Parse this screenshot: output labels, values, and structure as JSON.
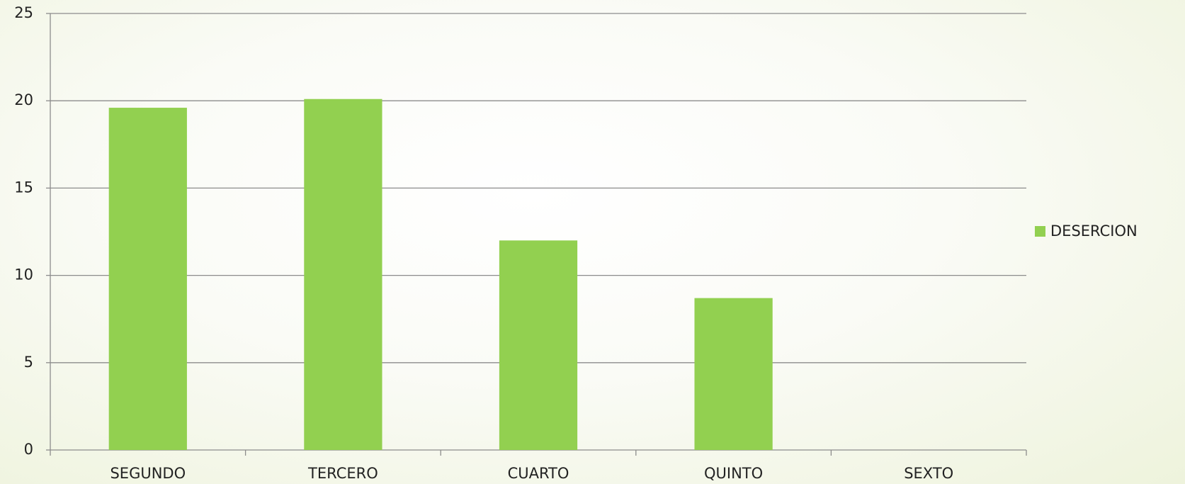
{
  "chart_data": {
    "type": "bar",
    "categories": [
      "SEGUNDO",
      "TERCERO",
      "CUARTO",
      "QUINTO",
      "SEXTO"
    ],
    "series": [
      {
        "name": "DESERCION",
        "color": "#92d050",
        "values": [
          19.6,
          20.1,
          12.0,
          8.7,
          0
        ]
      }
    ],
    "ylim": [
      0,
      25
    ],
    "yticks": [
      0,
      5,
      10,
      15,
      20,
      25
    ],
    "grid": true,
    "legend": "right"
  }
}
